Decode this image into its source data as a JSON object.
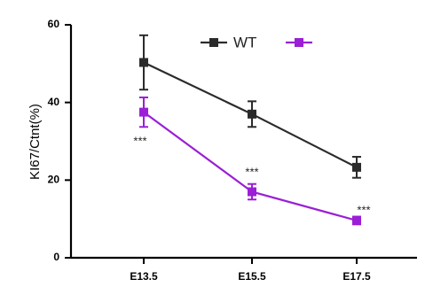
{
  "chart_data": {
    "type": "line",
    "categories": [
      "E13.5",
      "E15.5",
      "E17.5"
    ],
    "ylabel": "KI67/Ctnt(%)",
    "xlabel": "",
    "title": "",
    "ylim": [
      0,
      60
    ],
    "yticks": [
      0,
      20,
      40,
      60
    ],
    "legend_position": "top",
    "series": [
      {
        "name": "WT",
        "color": "#2b2b2b",
        "values": [
          50.3,
          37,
          23.3
        ],
        "errors": [
          7,
          3.3,
          2.7
        ]
      },
      {
        "name": "",
        "color": "#9a1fd6",
        "values": [
          37.5,
          17,
          9.6
        ],
        "errors": [
          3.8,
          2,
          1
        ]
      }
    ],
    "annotations": [
      "***",
      "***",
      "***"
    ]
  }
}
